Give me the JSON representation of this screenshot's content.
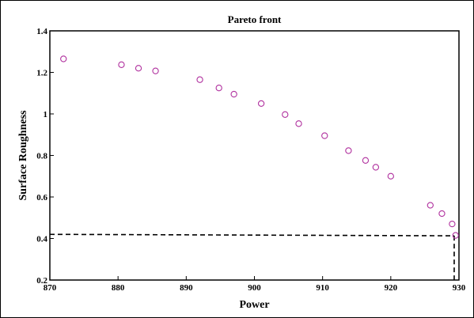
{
  "chart_data": {
    "type": "scatter",
    "title": "Pareto front",
    "xlabel": "Power",
    "ylabel": "Surface Roughness",
    "xlim": [
      870,
      930
    ],
    "ylim": [
      0.2,
      1.4
    ],
    "xticks": [
      870,
      880,
      890,
      900,
      910,
      920,
      930
    ],
    "xtick_labels": [
      "870",
      "880",
      "890",
      "900",
      "910",
      "920",
      "930"
    ],
    "yticks": [
      0.2,
      0.4,
      0.6,
      0.8,
      1.0,
      1.2,
      1.4
    ],
    "ytick_labels": [
      "0.2",
      "0.4",
      "0.6",
      "0.8",
      "1",
      "1.2",
      "1.4"
    ],
    "grid": false,
    "marker": "open-circle",
    "marker_color": "#b0309e",
    "points": [
      {
        "x": 872.0,
        "y": 1.265
      },
      {
        "x": 880.5,
        "y": 1.237
      },
      {
        "x": 883.0,
        "y": 1.22
      },
      {
        "x": 885.5,
        "y": 1.207
      },
      {
        "x": 892.0,
        "y": 1.165
      },
      {
        "x": 894.8,
        "y": 1.125
      },
      {
        "x": 897.0,
        "y": 1.095
      },
      {
        "x": 901.0,
        "y": 1.05
      },
      {
        "x": 904.5,
        "y": 0.997
      },
      {
        "x": 906.5,
        "y": 0.953
      },
      {
        "x": 910.3,
        "y": 0.895
      },
      {
        "x": 913.8,
        "y": 0.823
      },
      {
        "x": 916.3,
        "y": 0.776
      },
      {
        "x": 917.8,
        "y": 0.743
      },
      {
        "x": 920.0,
        "y": 0.7
      },
      {
        "x": 925.8,
        "y": 0.56
      },
      {
        "x": 927.5,
        "y": 0.52
      },
      {
        "x": 929.0,
        "y": 0.47
      },
      {
        "x": 929.5,
        "y": 0.415
      }
    ],
    "reference_lines": {
      "style": "dashed",
      "color": "#000000",
      "horizontal": {
        "y_start": 0.42,
        "y_end": 0.413,
        "x_from": 870,
        "x_to": 929.3
      },
      "vertical": {
        "x": 929.3,
        "y_from": 0.413,
        "y_to": 0.2
      }
    }
  }
}
